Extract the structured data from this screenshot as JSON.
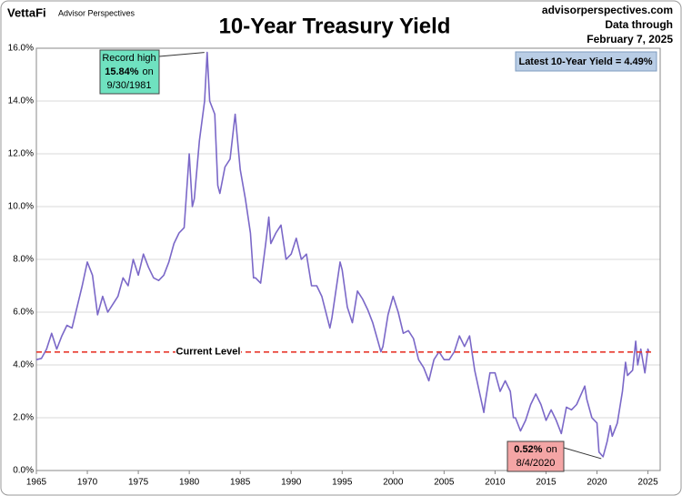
{
  "chart_data": {
    "type": "line",
    "title": "10-Year Treasury Yield",
    "brand": "VettaFi",
    "brand_subtitle": "Advisor Perspectives",
    "source": "advisorperspectives.com",
    "date_caption": "Data through",
    "date": "February 7, 2025",
    "latest_label": "Latest 10-Year Yield = 4.49%",
    "record_high": {
      "line1": "Record high",
      "value_text": "15.84%",
      "on": "on",
      "date": "9/30/1981"
    },
    "record_low": {
      "value_text": "0.52%",
      "on": "on",
      "date": "8/4/2020"
    },
    "current_level": {
      "label": "Current Level",
      "value": 4.49,
      "color": "#e8382d"
    },
    "color": "#7b68c8",
    "x": [
      1965,
      1965.5,
      1966,
      1966.5,
      1967,
      1967.5,
      1968,
      1968.5,
      1969,
      1969.5,
      1970,
      1970.5,
      1971,
      1971.5,
      1972,
      1972.5,
      1973,
      1973.5,
      1974,
      1974.5,
      1975,
      1975.5,
      1976,
      1976.5,
      1977,
      1977.5,
      1978,
      1978.5,
      1979,
      1979.5,
      1980,
      1980.3,
      1980.5,
      1981,
      1981.5,
      1981.75,
      1982,
      1982.5,
      1982.8,
      1983,
      1983.5,
      1984,
      1984.5,
      1985,
      1985.5,
      1986,
      1986.3,
      1986.5,
      1987,
      1987.5,
      1987.8,
      1988,
      1988.5,
      1989,
      1989.5,
      1990,
      1990.5,
      1991,
      1991.5,
      1992,
      1992.5,
      1993,
      1993.8,
      1994,
      1994.8,
      1995,
      1995.5,
      1996,
      1996.5,
      1997,
      1997.5,
      1998,
      1998.8,
      1999,
      1999.5,
      2000,
      2000.5,
      2001,
      2001.5,
      2002,
      2002.5,
      2003,
      2003.5,
      2004,
      2004.5,
      2005,
      2005.5,
      2006,
      2006.5,
      2007,
      2007.5,
      2008,
      2008.9,
      2009,
      2009.5,
      2010,
      2010.5,
      2011,
      2011.5,
      2011.8,
      2012,
      2012.5,
      2013,
      2013.5,
      2014,
      2014.5,
      2015,
      2015.5,
      2016,
      2016.5,
      2017,
      2017.5,
      2018,
      2018.8,
      2019,
      2019.5,
      2020,
      2020.2,
      2020.6,
      2021,
      2021.3,
      2021.5,
      2022,
      2022.5,
      2022.8,
      2023,
      2023.5,
      2023.8,
      2024,
      2024.3,
      2024.7,
      2025,
      2025.1
    ],
    "values": [
      4.2,
      4.25,
      4.6,
      5.2,
      4.6,
      5.1,
      5.5,
      5.4,
      6.2,
      7.0,
      7.9,
      7.4,
      5.9,
      6.6,
      6.0,
      6.3,
      6.6,
      7.3,
      7.0,
      8.0,
      7.4,
      8.2,
      7.7,
      7.3,
      7.2,
      7.4,
      7.9,
      8.6,
      9.0,
      9.2,
      12.0,
      10.0,
      10.3,
      12.5,
      14.0,
      15.84,
      14.0,
      13.5,
      10.8,
      10.5,
      11.5,
      11.8,
      13.5,
      11.4,
      10.3,
      9.0,
      7.3,
      7.3,
      7.1,
      8.6,
      9.6,
      8.6,
      9.0,
      9.3,
      8.0,
      8.2,
      8.8,
      8.0,
      8.2,
      7.0,
      7.0,
      6.6,
      5.4,
      5.8,
      7.9,
      7.6,
      6.2,
      5.6,
      6.8,
      6.5,
      6.1,
      5.6,
      4.5,
      4.7,
      5.9,
      6.6,
      6.0,
      5.2,
      5.3,
      5.0,
      4.2,
      3.9,
      3.4,
      4.2,
      4.5,
      4.2,
      4.2,
      4.5,
      5.1,
      4.7,
      5.1,
      3.8,
      2.2,
      2.5,
      3.7,
      3.7,
      3.0,
      3.4,
      3.0,
      2.0,
      2.0,
      1.5,
      1.9,
      2.5,
      2.9,
      2.5,
      1.9,
      2.3,
      1.9,
      1.4,
      2.4,
      2.3,
      2.5,
      3.2,
      2.7,
      2.0,
      1.8,
      0.7,
      0.52,
      1.1,
      1.7,
      1.3,
      1.8,
      3.0,
      4.1,
      3.6,
      3.8,
      4.9,
      4.0,
      4.6,
      3.7,
      4.6,
      4.49
    ],
    "xlim": [
      1965,
      2026.2
    ],
    "xticks": [
      1965,
      1970,
      1975,
      1980,
      1985,
      1990,
      1995,
      2000,
      2005,
      2010,
      2015,
      2020,
      2025
    ],
    "ylim": [
      0,
      16
    ],
    "yticks": [
      {
        "value": 0,
        "label": "0.0%"
      },
      {
        "value": 2,
        "label": "2.0%"
      },
      {
        "value": 4,
        "label": "4.0%"
      },
      {
        "value": 6,
        "label": "6.0%"
      },
      {
        "value": 8,
        "label": "8.0%"
      },
      {
        "value": 10,
        "label": "10.0%"
      },
      {
        "value": 12,
        "label": "12.0%"
      },
      {
        "value": 14,
        "label": "14.0%"
      },
      {
        "value": 16,
        "label": "16.0%"
      }
    ],
    "grid": true
  }
}
